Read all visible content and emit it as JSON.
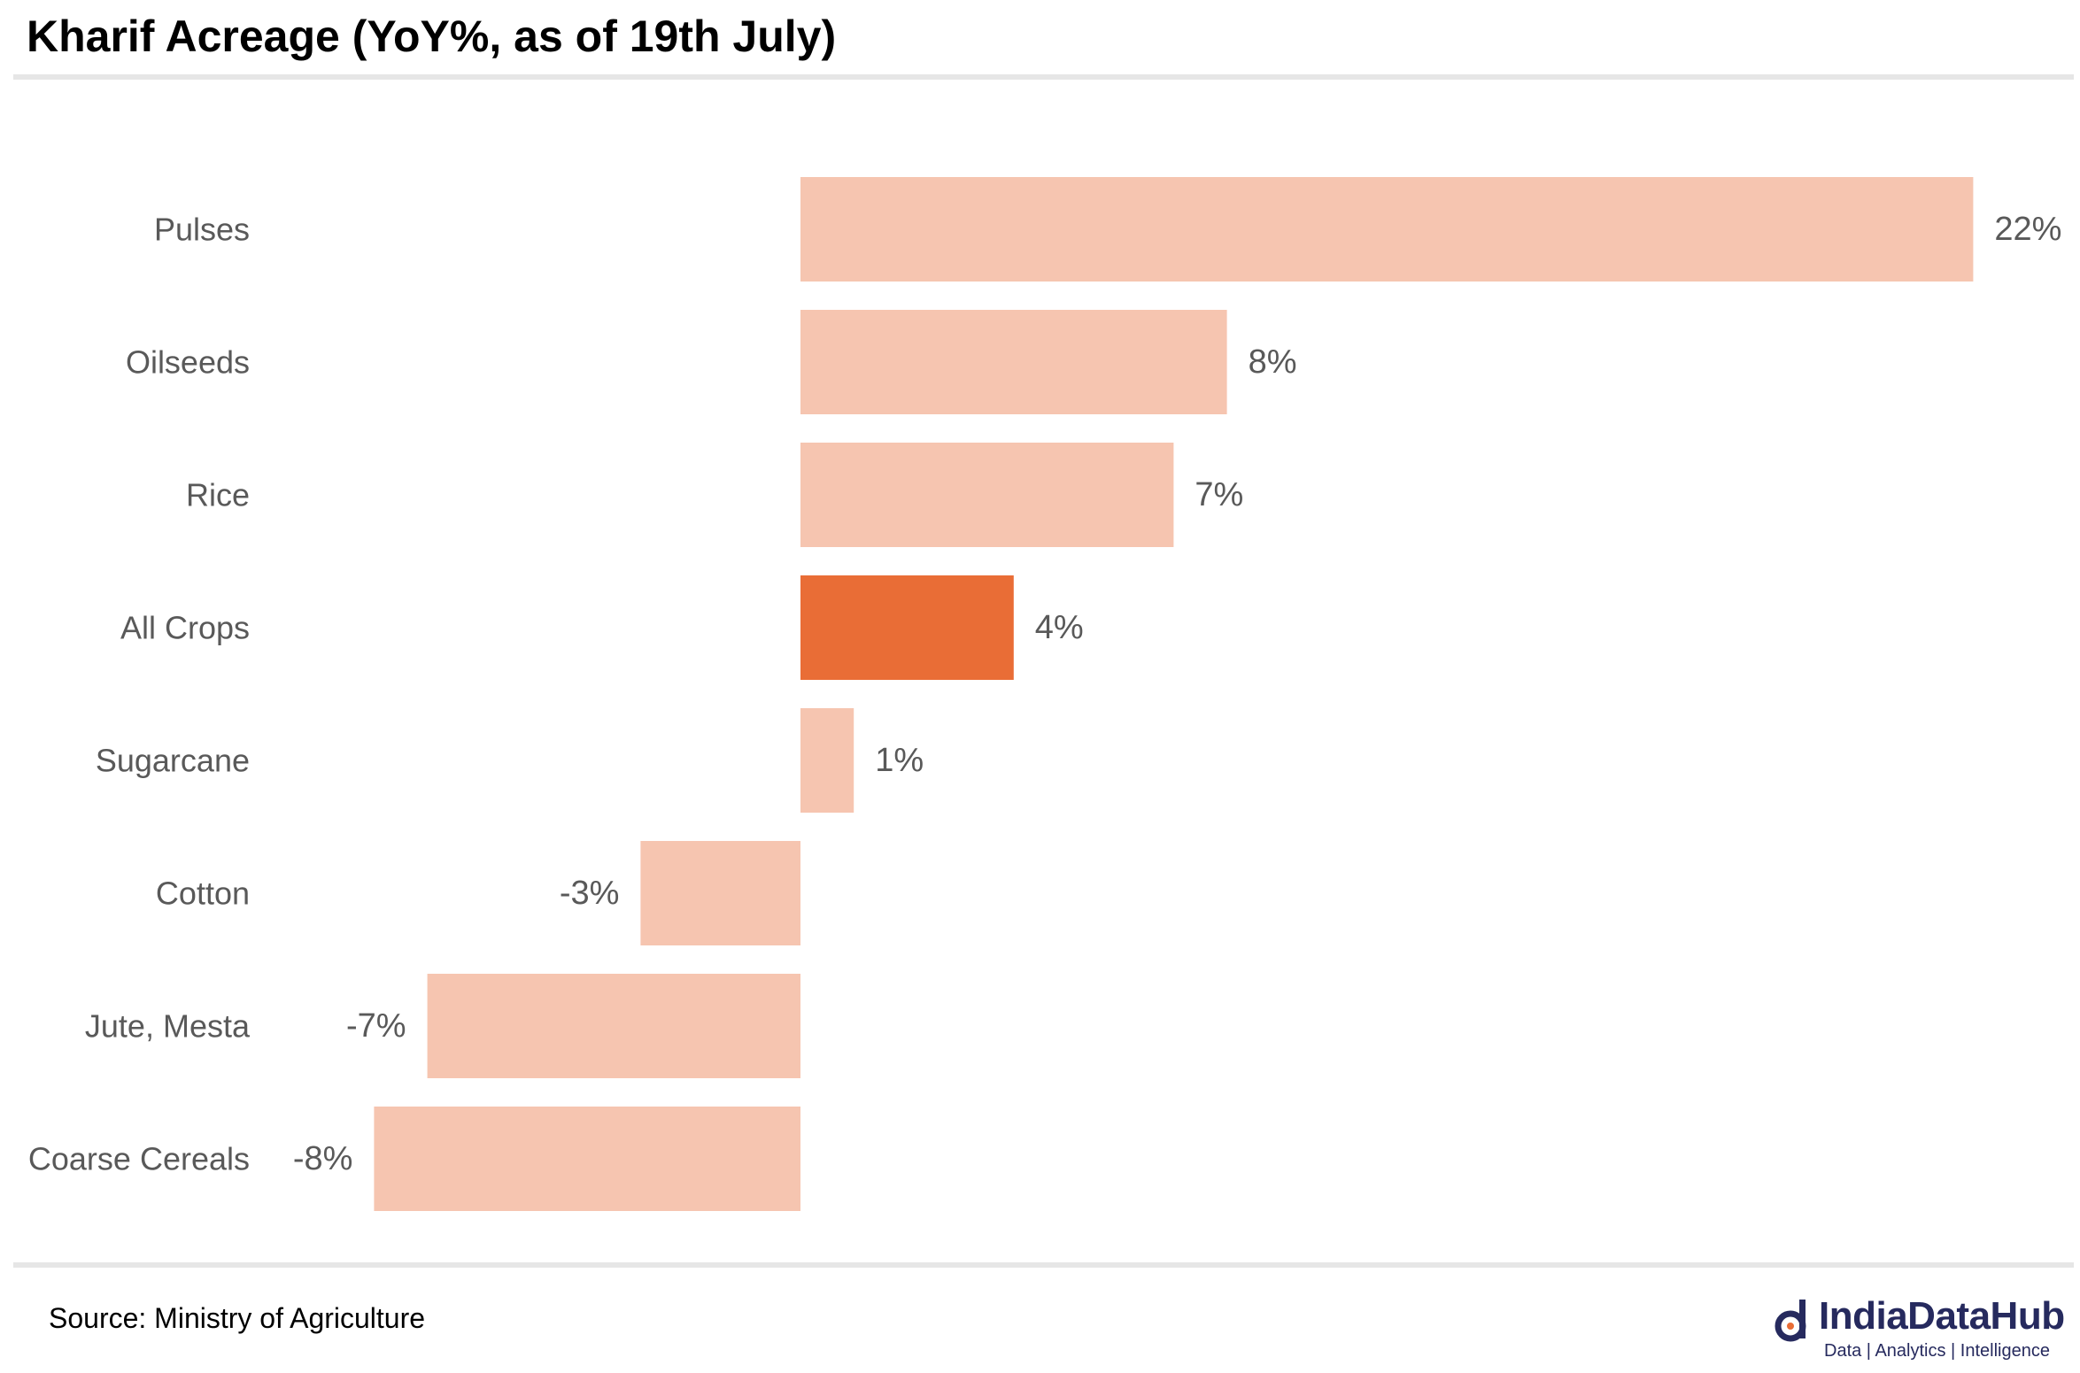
{
  "title": "Kharif Acreage (YoY%, as of 19th July)",
  "source": "Source: Ministry of Agriculture",
  "logo": {
    "name": "IndiaDataHub",
    "tagline": "Data | Analytics | Intelligence"
  },
  "colors": {
    "bar": "#f6c5b0",
    "highlight": "#e96d36",
    "label": "#595959",
    "rule": "#e6e6e6",
    "brand": "#262a5e"
  },
  "chart_data": {
    "type": "bar",
    "orientation": "horizontal",
    "title": "Kharif Acreage (YoY%, as of 19th July)",
    "categories": [
      "Pulses",
      "Oilseeds",
      "Rice",
      "All Crops",
      "Sugarcane",
      "Cotton",
      "Jute, Mesta",
      "Coarse Cereals"
    ],
    "values": [
      22,
      8,
      7,
      4,
      1,
      -3,
      -7,
      -8
    ],
    "labels": [
      "22%",
      "8%",
      "7%",
      "4%",
      "1%",
      "-3%",
      "-7%",
      "-8%"
    ],
    "highlight": "All Crops",
    "unit": "%",
    "xlim": [
      -8.2,
      22
    ],
    "grid": false,
    "legend": "none"
  }
}
